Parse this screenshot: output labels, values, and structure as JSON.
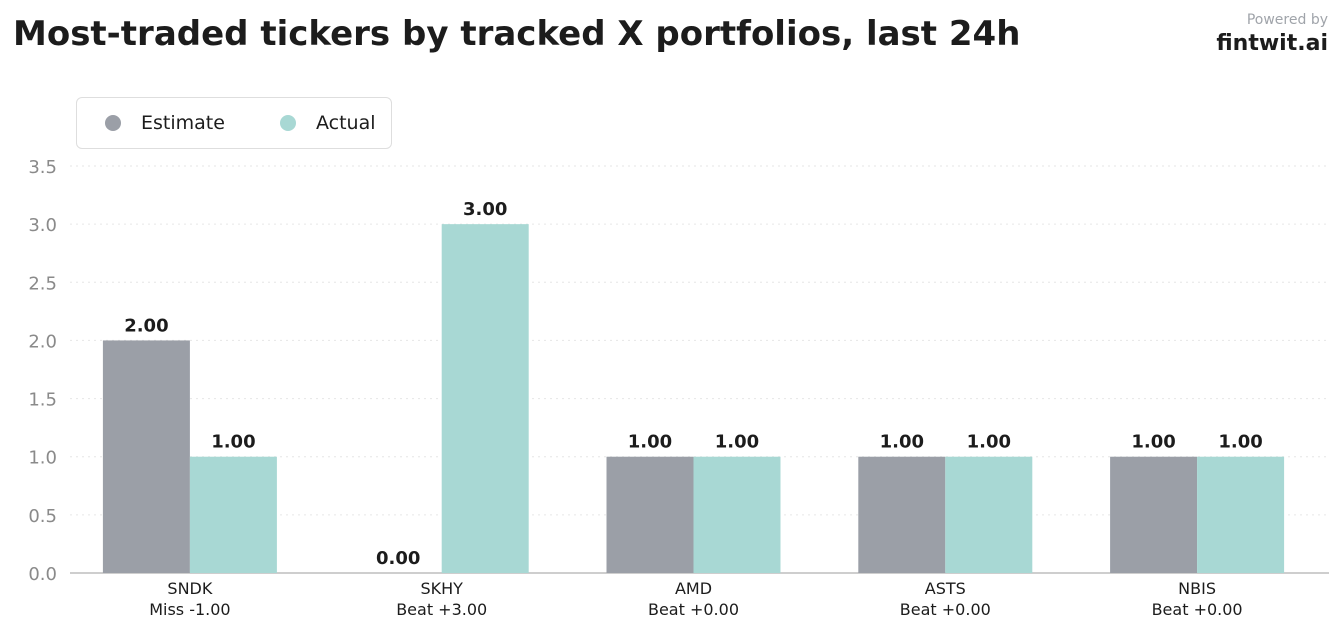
{
  "header": {
    "title": "Most-traded tickers by tracked X portfolios, last 24h",
    "powered_by": "Powered by",
    "brand": "fintwit.ai"
  },
  "colors": {
    "estimate": "#9b9fa7",
    "actual": "#a8d8d4",
    "grid": "#e6e6e6",
    "axis": "#bdbdbd"
  },
  "chart_data": {
    "type": "bar",
    "title": "Most-traded tickers by tracked X portfolios, last 24h",
    "categories": [
      "SNDK",
      "SKHY",
      "AMD",
      "ASTS",
      "NBIS"
    ],
    "category_sublabels": [
      "Miss -1.00",
      "Beat +3.00",
      "Beat +0.00",
      "Beat +0.00",
      "Beat +0.00"
    ],
    "series": [
      {
        "name": "Estimate",
        "values": [
          2.0,
          0.0,
          1.0,
          1.0,
          1.0
        ]
      },
      {
        "name": "Actual",
        "values": [
          1.0,
          3.0,
          1.0,
          1.0,
          1.0
        ]
      }
    ],
    "value_labels": [
      [
        "2.00",
        "0.00",
        "1.00",
        "1.00",
        "1.00"
      ],
      [
        "1.00",
        "3.00",
        "1.00",
        "1.00",
        "1.00"
      ]
    ],
    "yticks": [
      "0.0",
      "0.5",
      "1.0",
      "1.5",
      "2.0",
      "2.5",
      "3.0",
      "3.5"
    ],
    "ylim": [
      0,
      3.5
    ],
    "grid": true,
    "legend": "top-left",
    "xlabel": "",
    "ylabel": ""
  }
}
